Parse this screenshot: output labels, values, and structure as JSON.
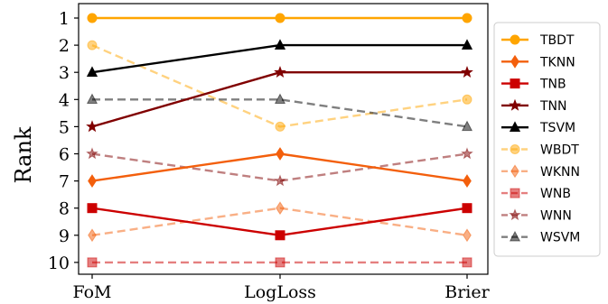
{
  "chart_data": {
    "type": "line",
    "categories": [
      "FoM",
      "LogLoss",
      "Brier"
    ],
    "ylabel": "Rank",
    "xlabel": "",
    "ylim": [
      1,
      10
    ],
    "y_inverted": true,
    "yticks": [
      "1",
      "2",
      "3",
      "4",
      "5",
      "6",
      "7",
      "8",
      "9",
      "10"
    ],
    "grid": false,
    "legend_position": "right-outside",
    "series": [
      {
        "name": "TBDT",
        "values": [
          1,
          1,
          1
        ],
        "color": "#FFA500",
        "dash": "solid",
        "marker": "circle",
        "alpha": 1.0
      },
      {
        "name": "TKNN",
        "values": [
          7,
          6,
          7
        ],
        "color": "#F35F0C",
        "dash": "solid",
        "marker": "diamond",
        "alpha": 1.0
      },
      {
        "name": "TNB",
        "values": [
          8,
          9,
          8
        ],
        "color": "#CC0000",
        "dash": "solid",
        "marker": "square",
        "alpha": 1.0
      },
      {
        "name": "TNN",
        "values": [
          5,
          3,
          3
        ],
        "color": "#800000",
        "dash": "solid",
        "marker": "star",
        "alpha": 1.0
      },
      {
        "name": "TSVM",
        "values": [
          3,
          2,
          2
        ],
        "color": "#000000",
        "dash": "solid",
        "marker": "triangle",
        "alpha": 1.0
      },
      {
        "name": "WBDT",
        "values": [
          2,
          5,
          4
        ],
        "color": "#FFA500",
        "dash": "dashed",
        "marker": "circle",
        "alpha": 0.5
      },
      {
        "name": "WKNN",
        "values": [
          9,
          8,
          9
        ],
        "color": "#F35F0C",
        "dash": "dashed",
        "marker": "diamond",
        "alpha": 0.5
      },
      {
        "name": "WNB",
        "values": [
          10,
          10,
          10
        ],
        "color": "#CC0000",
        "dash": "dashed",
        "marker": "square",
        "alpha": 0.5
      },
      {
        "name": "WNN",
        "values": [
          6,
          7,
          6
        ],
        "color": "#800000",
        "dash": "dashed",
        "marker": "star",
        "alpha": 0.5
      },
      {
        "name": "WSVM",
        "values": [
          4,
          4,
          5
        ],
        "color": "#000000",
        "dash": "dashed",
        "marker": "triangle",
        "alpha": 0.5
      }
    ]
  }
}
